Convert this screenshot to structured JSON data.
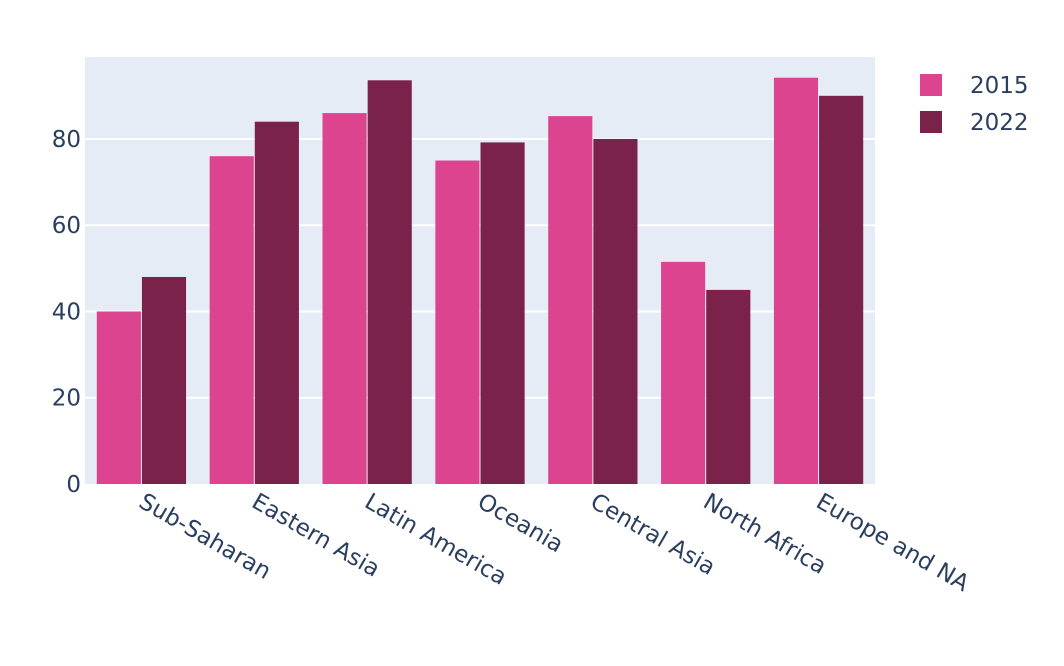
{
  "chart_data": {
    "type": "bar",
    "categories": [
      "Sub-Saharan",
      "Eastern Asia",
      "Latin America",
      "Oceania",
      "Central Asia",
      "North Africa",
      "Europe and NA"
    ],
    "series": [
      {
        "name": "2015",
        "color": "#dd4490",
        "values": [
          40,
          76,
          86,
          75,
          85.3,
          51.5,
          94.2
        ]
      },
      {
        "name": "2022",
        "color": "#7b224b",
        "values": [
          48,
          84,
          93.6,
          79.2,
          80,
          45,
          90
        ]
      }
    ],
    "y_ticks": [
      "0",
      "20",
      "40",
      "60",
      "80"
    ],
    "ylim": [
      0,
      99
    ],
    "grid": true,
    "legend_placement": "top-right",
    "plot_background": "#e5ecf6"
  }
}
